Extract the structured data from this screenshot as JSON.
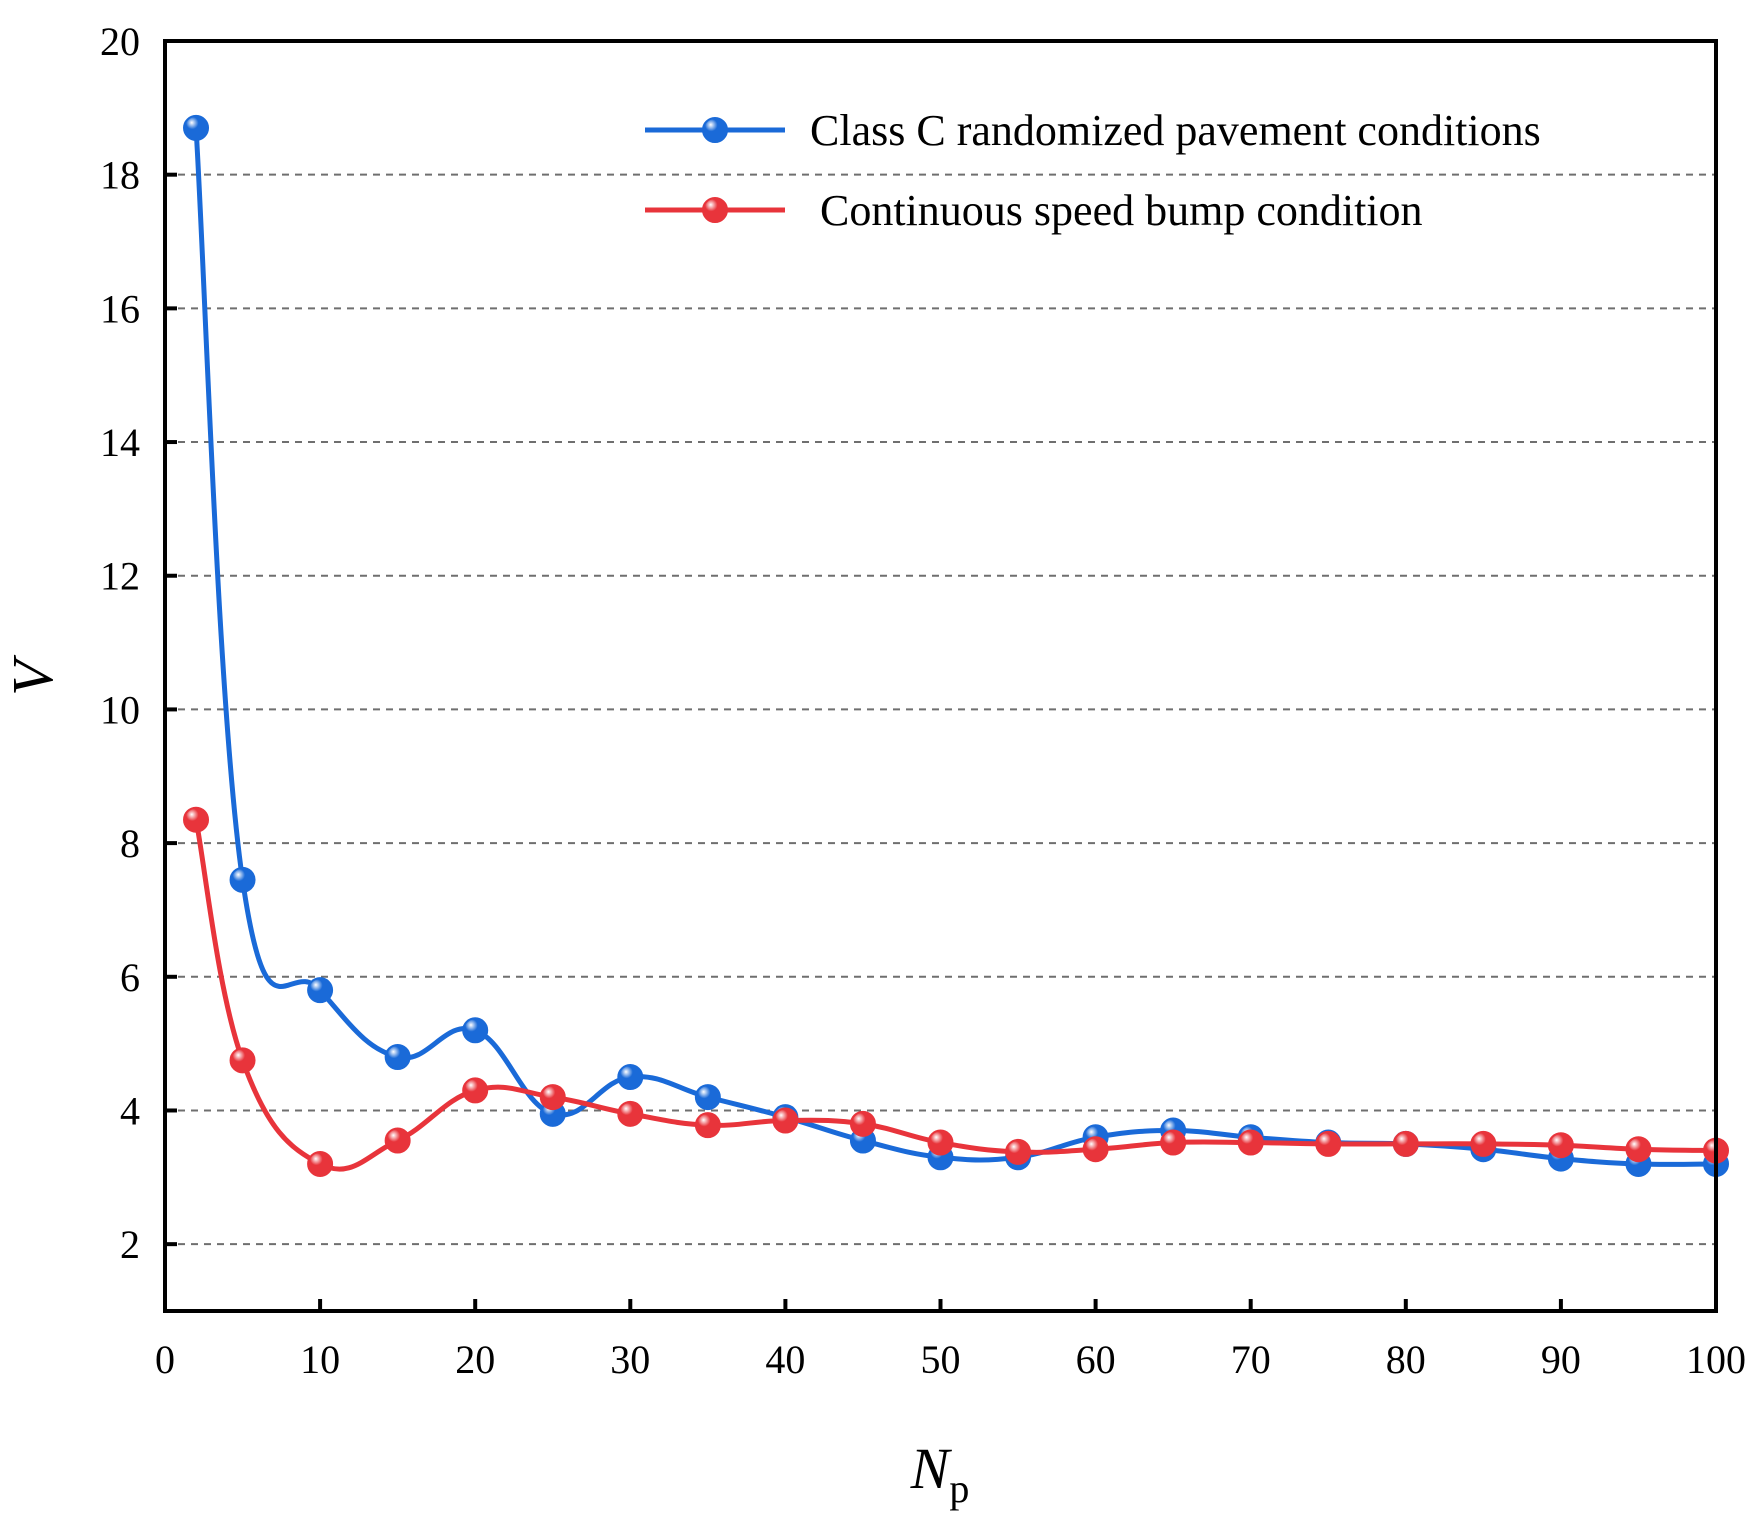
{
  "chart_data": {
    "type": "line",
    "title": "",
    "xlabel": "N",
    "xlabel_subscript": "p",
    "ylabel": "V",
    "xlim": [
      0,
      100
    ],
    "ylim": [
      1,
      20
    ],
    "x_ticks": [
      0,
      10,
      20,
      30,
      40,
      50,
      60,
      70,
      80,
      90,
      100
    ],
    "y_ticks": [
      2,
      4,
      6,
      8,
      10,
      12,
      14,
      16,
      18,
      20
    ],
    "grid": "horizontal dashed",
    "legend_position": "top-right",
    "x": [
      2,
      5,
      10,
      15,
      20,
      25,
      30,
      35,
      40,
      45,
      50,
      55,
      60,
      65,
      70,
      75,
      80,
      85,
      90,
      95,
      100
    ],
    "series": [
      {
        "name": "Class C randomized pavement conditions",
        "color": "#1a6ad8",
        "values": [
          18.7,
          7.45,
          5.8,
          4.8,
          5.2,
          3.95,
          4.5,
          4.2,
          3.9,
          3.55,
          3.3,
          3.3,
          3.6,
          3.7,
          3.6,
          3.52,
          3.5,
          3.42,
          3.28,
          3.2,
          3.2
        ]
      },
      {
        "name": "Continuous speed bump condition",
        "color": "#e8343b",
        "values": [
          8.35,
          4.75,
          3.2,
          3.55,
          4.3,
          4.2,
          3.95,
          3.78,
          3.85,
          3.8,
          3.52,
          3.38,
          3.42,
          3.52,
          3.52,
          3.5,
          3.5,
          3.5,
          3.48,
          3.42,
          3.4
        ]
      }
    ]
  }
}
